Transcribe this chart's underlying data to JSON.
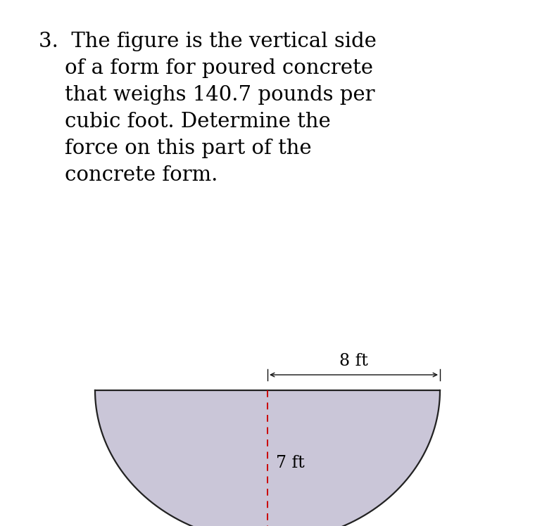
{
  "title_line1": "3.  The figure is the vertical side",
  "title_line2": "    of a form for poured concrete",
  "title_line3": "    that weighs 140.7 pounds per",
  "title_line4": "    cubic foot. Determine the",
  "title_line5": "    force on this part of the",
  "title_line6": "    concrete form.",
  "title_fontsize": 21,
  "shape_fill_color": "#cac6d8",
  "shape_edge_color": "#222222",
  "shape_linewidth": 1.6,
  "red_dashed_color": "#cc0000",
  "red_dashed_linewidth": 1.4,
  "arrow_color": "#111111",
  "arrow_linewidth": 1.0,
  "label_8ft": "8 ft",
  "label_7ft": "7 ft",
  "label_fontsize": 17,
  "semi_major": 8.0,
  "semi_minor": 7.0,
  "background_color": "#ffffff"
}
